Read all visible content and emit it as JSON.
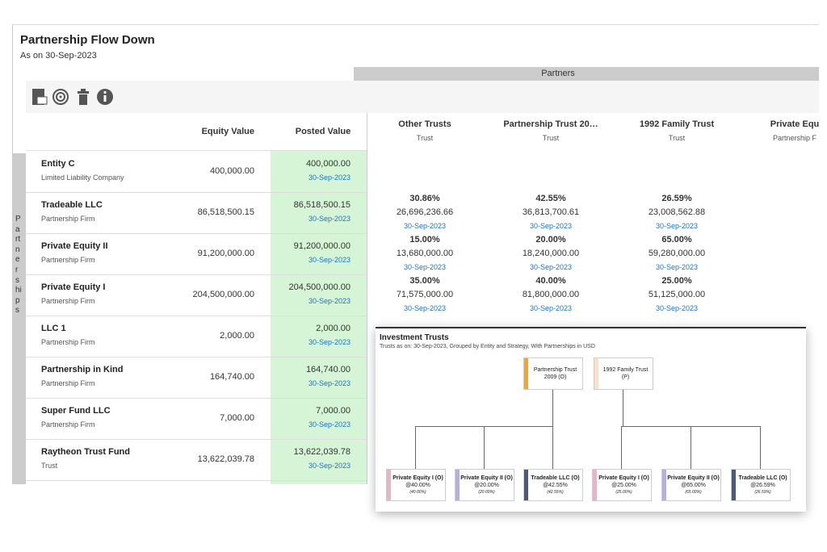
{
  "header": {
    "title": "Partnership Flow Down",
    "subtitle": "As on 30-Sep-2023"
  },
  "partners_band": "Partners",
  "side_label": "Partnerships",
  "table": {
    "columns": [
      "Equity Value",
      "Posted Value"
    ],
    "partner_columns": [
      {
        "name": "Other Trusts",
        "type": "Trust"
      },
      {
        "name": "Partnership Trust 20…",
        "type": "Trust"
      },
      {
        "name": "1992 Family Trust",
        "type": "Trust"
      },
      {
        "name": "Private Equ",
        "type": "Partnership F"
      }
    ],
    "rows": [
      {
        "name": "Entity C",
        "kind": "Limited Liability Company",
        "equity": "400,000.00",
        "posted": "400,000.00",
        "posted_date": "30-Sep-2023",
        "allocations": []
      },
      {
        "name": "Tradeable LLC",
        "kind": "Partnership Firm",
        "equity": "86,518,500.15",
        "posted": "86,518,500.15",
        "posted_date": "30-Sep-2023",
        "allocations": [
          {
            "pct": "30.86%",
            "amount": "26,696,236.66",
            "date": "30-Sep-2023"
          },
          {
            "pct": "42.55%",
            "amount": "36,813,700.61",
            "date": "30-Sep-2023"
          },
          {
            "pct": "26.59%",
            "amount": "23,008,562.88",
            "date": "30-Sep-2023"
          }
        ]
      },
      {
        "name": "Private Equity II",
        "kind": "Partnership Firm",
        "equity": "91,200,000.00",
        "posted": "91,200,000.00",
        "posted_date": "30-Sep-2023",
        "allocations": [
          {
            "pct": "15.00%",
            "amount": "13,680,000.00",
            "date": "30-Sep-2023"
          },
          {
            "pct": "20.00%",
            "amount": "18,240,000.00",
            "date": "30-Sep-2023"
          },
          {
            "pct": "65.00%",
            "amount": "59,280,000.00",
            "date": "30-Sep-2023"
          }
        ]
      },
      {
        "name": "Private Equity I",
        "kind": "Partnership Firm",
        "equity": "204,500,000.00",
        "posted": "204,500,000.00",
        "posted_date": "30-Sep-2023",
        "allocations": [
          {
            "pct": "35.00%",
            "amount": "71,575,000.00",
            "date": "30-Sep-2023"
          },
          {
            "pct": "40.00%",
            "amount": "81,800,000.00",
            "date": "30-Sep-2023"
          },
          {
            "pct": "25.00%",
            "amount": "51,125,000.00",
            "date": "30-Sep-2023"
          }
        ]
      },
      {
        "name": "LLC 1",
        "kind": "Partnership Firm",
        "equity": "2,000.00",
        "posted": "2,000.00",
        "posted_date": "30-Sep-2023",
        "allocations": []
      },
      {
        "name": "Partnership in Kind",
        "kind": "Partnership Firm",
        "equity": "164,740.00",
        "posted": "164,740.00",
        "posted_date": "30-Sep-2023",
        "allocations": []
      },
      {
        "name": "Super Fund LLC",
        "kind": "Partnership Firm",
        "equity": "7,000.00",
        "posted": "7,000.00",
        "posted_date": "30-Sep-2023",
        "allocations": []
      },
      {
        "name": "Raytheon Trust Fund",
        "kind": "Trust",
        "equity": "13,622,039.78",
        "posted": "13,622,039.78",
        "posted_date": "30-Sep-2023",
        "allocations": []
      }
    ]
  },
  "overlay": {
    "title": "Investment Trusts",
    "subtitle": "Trusts as on: 30-Sep-2023, Grouped by Entity and Strategy, With Partnerships in USD",
    "parents": [
      {
        "label": "Partnership Trust 2009 (O)",
        "children": [
          {
            "label": "Private Equity I (O)",
            "share": "@40.00%",
            "note": "(40.00%)"
          },
          {
            "label": "Private Equity II (O)",
            "share": "@20.00%",
            "note": "(20.00%)"
          },
          {
            "label": "Tradeable LLC (O)",
            "share": "@42.55%",
            "note": "(42.55%)"
          }
        ]
      },
      {
        "label": "1992 Family Trust (P)",
        "children": [
          {
            "label": "Private Equity I (O)",
            "share": "@25.00%",
            "note": "(25.00%)"
          },
          {
            "label": "Private Equity II (O)",
            "share": "@65.00%",
            "note": "(65.00%)"
          },
          {
            "label": "Tradeable LLC (O)",
            "share": "@26.59%",
            "note": "(26.59%)"
          }
        ]
      }
    ]
  }
}
